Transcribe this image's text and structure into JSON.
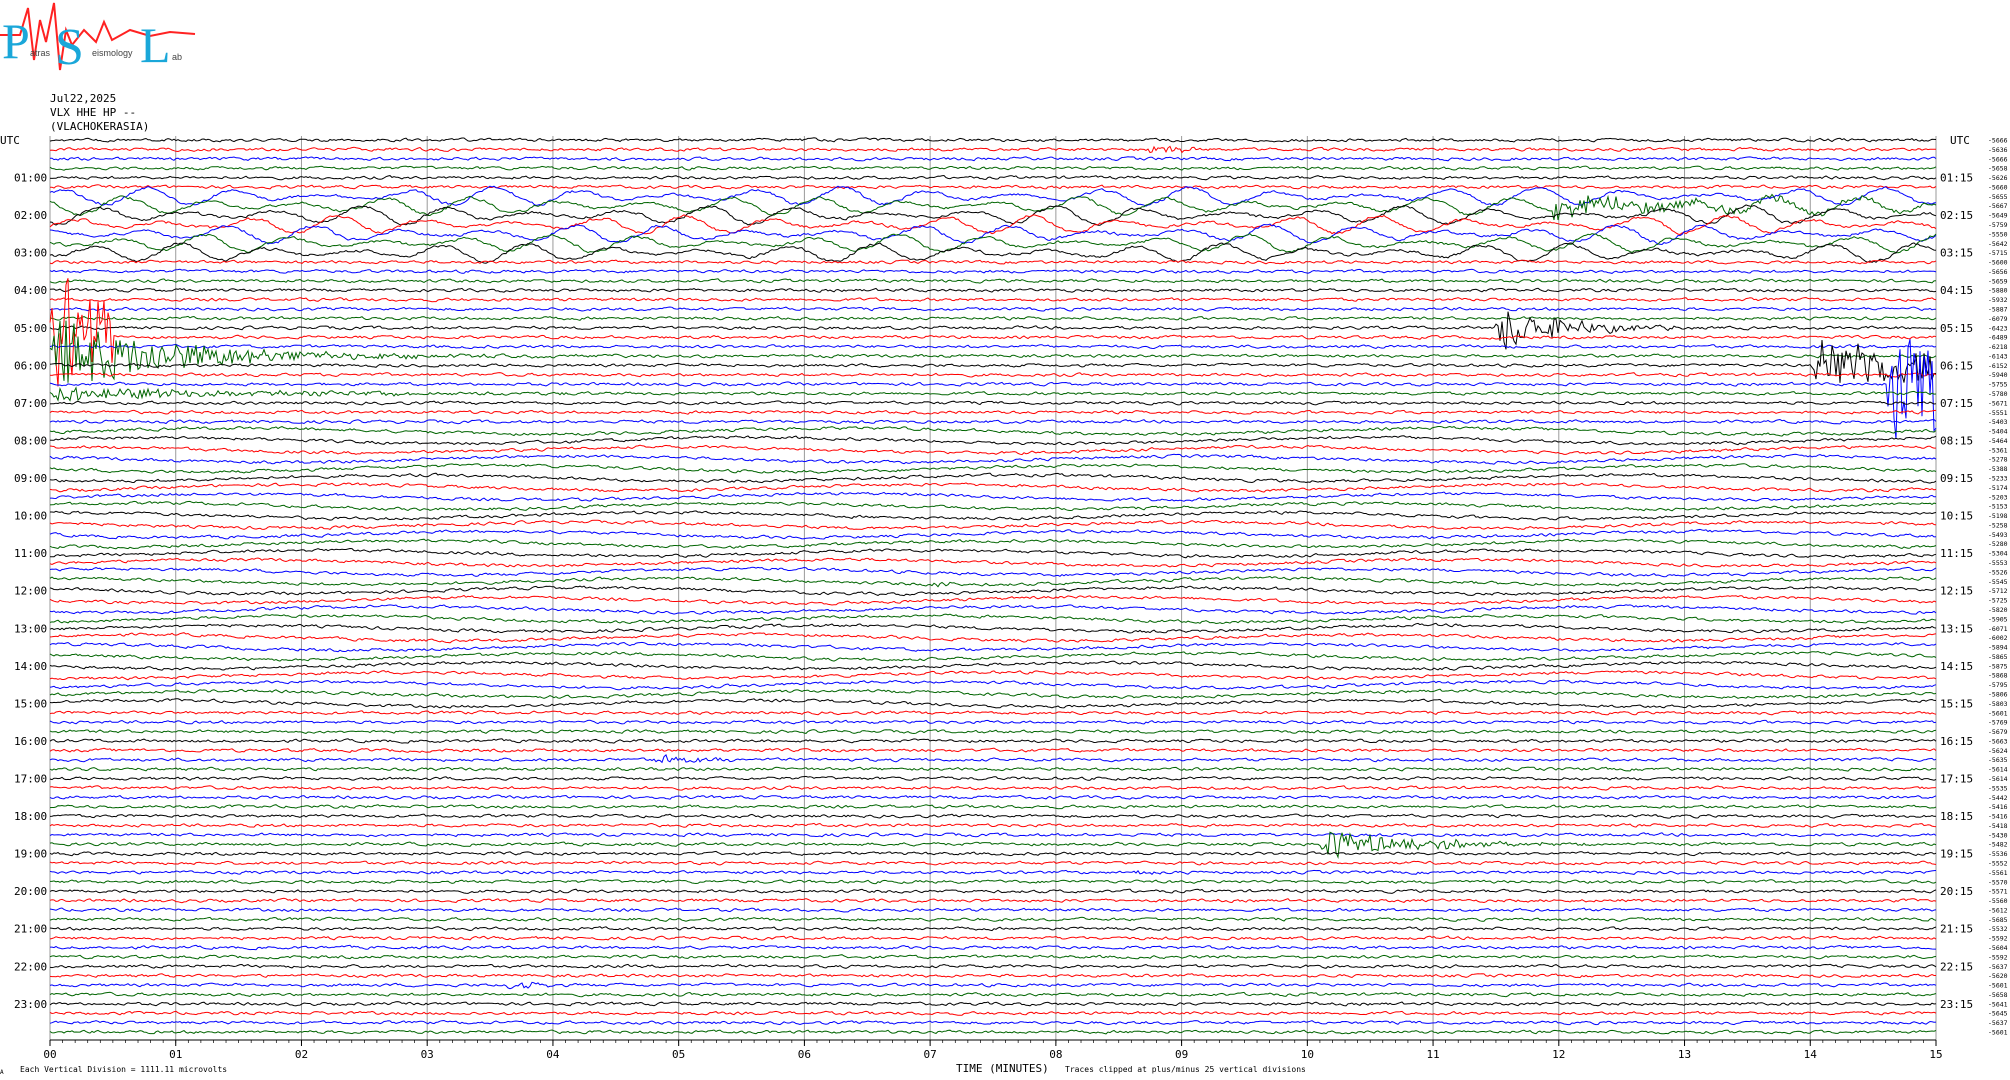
{
  "logo": {
    "letters": [
      "P",
      "S",
      "L"
    ],
    "subtext": [
      "atras",
      "eismology",
      "ab"
    ],
    "colors": {
      "letters": "#1aa7d9",
      "wave": "#ff2222"
    }
  },
  "header": {
    "date": "Jul22,2025",
    "station": "VLX HHE HP --",
    "location": "(VLACHOKERASIA)"
  },
  "footer": {
    "division_note": "Each Vertical Division = 1111.11 microvolts",
    "xlabel": "TIME (MINUTES)",
    "clip_note": "Traces clipped at plus/minus 25 vertical divisions",
    "corner_mark": "A"
  },
  "chart_data": {
    "type": "helicorder",
    "xlabel": "TIME (MINUTES)",
    "xlim": [
      0,
      15
    ],
    "x_ticks": [
      "00",
      "01",
      "02",
      "03",
      "04",
      "05",
      "06",
      "07",
      "08",
      "09",
      "10",
      "11",
      "12",
      "13",
      "14",
      "15"
    ],
    "left_axis_title": "UTC",
    "right_axis_title": "UTC",
    "left_hour_labels": [
      "01:00",
      "02:00",
      "03:00",
      "04:00",
      "05:00",
      "06:00",
      "07:00",
      "08:00",
      "09:00",
      "10:00",
      "11:00",
      "12:00",
      "13:00",
      "14:00",
      "15:00",
      "16:00",
      "17:00",
      "18:00",
      "19:00",
      "20:00",
      "21:00",
      "22:00",
      "23:00"
    ],
    "right_hour_labels": [
      "01:15",
      "02:15",
      "03:15",
      "04:15",
      "05:15",
      "06:15",
      "07:15",
      "08:15",
      "09:15",
      "10:15",
      "11:15",
      "12:15",
      "13:15",
      "14:15",
      "15:15",
      "16:15",
      "17:15",
      "18:15",
      "19:15",
      "20:15",
      "21:15",
      "22:15",
      "23:15"
    ],
    "line_minutes": 15,
    "line_count": 96,
    "trace_colors": [
      "#000000",
      "#ff0000",
      "#0000ff",
      "#006400"
    ],
    "grid": true,
    "offsets": [
      "-5666",
      "-5636",
      "-5666",
      "-5658",
      "-5626",
      "-5660",
      "-5655",
      "-5667",
      "-5649",
      "-5759",
      "-5550",
      "-5642",
      "-5715",
      "-5600",
      "-5656",
      "-5659",
      "-5880",
      "-5932",
      "-5887",
      "-6079",
      "-6423",
      "-6489",
      "-6218",
      "-6143",
      "-6152",
      "-5940",
      "-5755",
      "-5780",
      "-5671",
      "-5551",
      "-5403",
      "-5404",
      "-5464",
      "-5361",
      "-5278",
      "-5388",
      "-5233",
      "-5174",
      "-5203",
      "-5153",
      "-5198",
      "-5258",
      "-5493",
      "-5280",
      "-5304",
      "-5553",
      "-5526",
      "-5545",
      "-5712",
      "-5725",
      "-5820",
      "-5905",
      "-6071",
      "-6002",
      "-5894",
      "-5865",
      "-5875",
      "-5868",
      "-5795",
      "-5806",
      "-5803",
      "-5601",
      "-5769",
      "-5679",
      "-5663",
      "-5624",
      "-5635",
      "-5614",
      "-5614",
      "-5535",
      "-5442",
      "-5416",
      "-5416",
      "-5418",
      "-5430",
      "-5482",
      "-5536",
      "-5552",
      "-5561",
      "-5570",
      "-5571",
      "-5560",
      "-5612",
      "-5685",
      "-5532",
      "-5592",
      "-5604",
      "-5592",
      "-5637",
      "-5620",
      "-5601",
      "-5658",
      "-5641",
      "-5645",
      "-5637",
      "-5601"
    ],
    "events": [
      {
        "line": 1,
        "start_min": 8.7,
        "end_min": 9.2,
        "amp": 6,
        "dur_min": 0.5,
        "color": "#0000ff"
      },
      {
        "line": 7,
        "start_min": 11.9,
        "end_min": 15.0,
        "amp": 10,
        "dur_min": 3.5,
        "color": "#000000"
      },
      {
        "line": 20,
        "start_min": 11.5,
        "end_min": 13.0,
        "amp": 28,
        "dur_min": 1.0,
        "color": "#ff0000"
      },
      {
        "line": 24,
        "start_min": 14.0,
        "end_min": 15.0,
        "amp": 30,
        "dur_min": 3.0,
        "color": "#0000ff"
      },
      {
        "line": 26,
        "start_min": 14.6,
        "end_min": 15.0,
        "amp": 60,
        "dur_min": 4.0,
        "color": "#0000ff"
      },
      {
        "line": 21,
        "start_min": 0.0,
        "end_min": 0.5,
        "amp": 80,
        "dur_min": 1.2,
        "color": "#006400"
      },
      {
        "line": 23,
        "start_min": 0.0,
        "end_min": 6.0,
        "amp": 40,
        "dur_min": 2.0,
        "color": "#006400"
      },
      {
        "line": 27,
        "start_min": 0.0,
        "end_min": 6.0,
        "amp": 8,
        "dur_min": 3.0,
        "color": "#006400"
      },
      {
        "line": 47,
        "start_min": 7.0,
        "end_min": 7.3,
        "amp": 4,
        "dur_min": 0.3,
        "color": "#006400"
      },
      {
        "line": 66,
        "start_min": 4.8,
        "end_min": 5.6,
        "amp": 5,
        "dur_min": 0.8,
        "color": "#0000ff"
      },
      {
        "line": 75,
        "start_min": 10.1,
        "end_min": 12.8,
        "amp": 16,
        "dur_min": 1.5,
        "color": "#006400"
      },
      {
        "line": 78,
        "start_min": 8.6,
        "end_min": 8.9,
        "amp": 4,
        "dur_min": 0.3,
        "color": "#0000ff"
      },
      {
        "line": 90,
        "start_min": 3.6,
        "end_min": 4.0,
        "amp": 8,
        "dur_min": 0.4,
        "color": "#0000ff"
      }
    ]
  }
}
